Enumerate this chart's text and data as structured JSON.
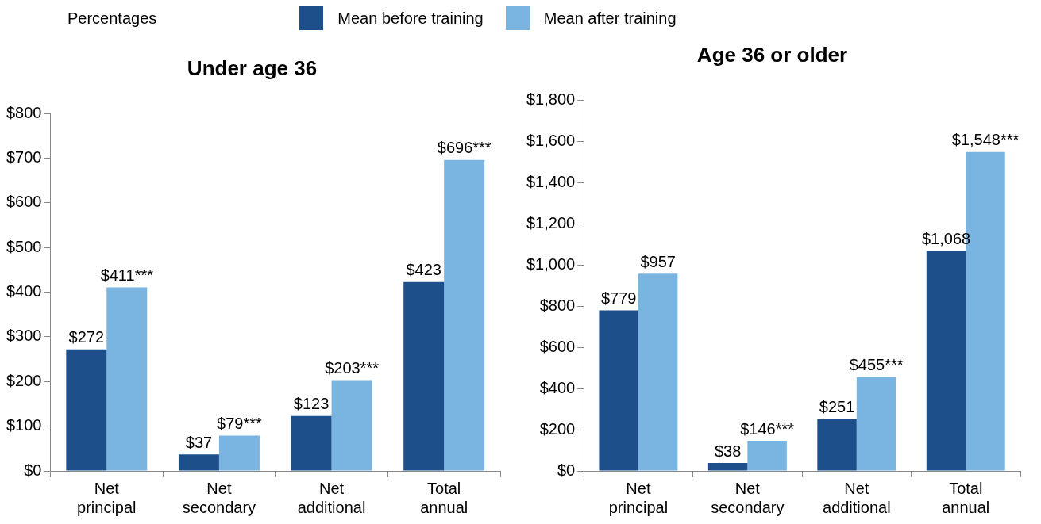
{
  "chart_data": [
    {
      "type": "bar",
      "title": "Under age 36",
      "legend_title": "Percentages",
      "legend": "top",
      "grid": false,
      "categories": [
        "Net principal",
        "Net secondary",
        "Net additional",
        "Total annual"
      ],
      "series": [
        {
          "name": "Mean before training",
          "color": "#1d4f8b",
          "values": [
            272,
            37,
            123,
            423
          ],
          "value_labels": [
            "$272",
            "$37",
            "$123",
            "$423"
          ]
        },
        {
          "name": "Mean after training",
          "color": "#7ab4e0",
          "values": [
            411,
            79,
            203,
            696
          ],
          "value_labels": [
            "$411***",
            "$79***",
            "$203***",
            "$696***"
          ]
        }
      ],
      "ylim": [
        0,
        800
      ],
      "yticks": [
        {
          "value": 0,
          "label": "$0"
        },
        {
          "value": 100,
          "label": "$100"
        },
        {
          "value": 200,
          "label": "$200"
        },
        {
          "value": 300,
          "label": "$300"
        },
        {
          "value": 400,
          "label": "$400"
        },
        {
          "value": 500,
          "label": "$500"
        },
        {
          "value": 600,
          "label": "$600"
        },
        {
          "value": 700,
          "label": "$700"
        },
        {
          "value": 800,
          "label": "$800"
        }
      ]
    },
    {
      "type": "bar",
      "title": "Age 36 or older",
      "grid": false,
      "categories": [
        "Net principal",
        "Net secondary",
        "Net additional",
        "Total annual"
      ],
      "series": [
        {
          "color": "#1d4f8b",
          "values": [
            779,
            38,
            251,
            1068
          ],
          "value_labels": [
            "$779",
            "$38",
            "$251",
            "$1,068"
          ]
        },
        {
          "color": "#7ab4e0",
          "values": [
            957,
            146,
            455,
            1548
          ],
          "value_labels": [
            "$957",
            "$146***",
            "$455***",
            "$1,548***"
          ]
        }
      ],
      "ylim": [
        0,
        1800
      ],
      "yticks": [
        {
          "value": 0,
          "label": "$0"
        },
        {
          "value": 200,
          "label": "$200"
        },
        {
          "value": 400,
          "label": "$400"
        },
        {
          "value": 600,
          "label": "$600"
        },
        {
          "value": 800,
          "label": "$800"
        },
        {
          "value": 1000,
          "label": "$1,000"
        },
        {
          "value": 1200,
          "label": "$1,200"
        },
        {
          "value": 1400,
          "label": "$1,400"
        },
        {
          "value": 1600,
          "label": "$1,600"
        },
        {
          "value": 1800,
          "label": "$1,800"
        }
      ]
    }
  ]
}
